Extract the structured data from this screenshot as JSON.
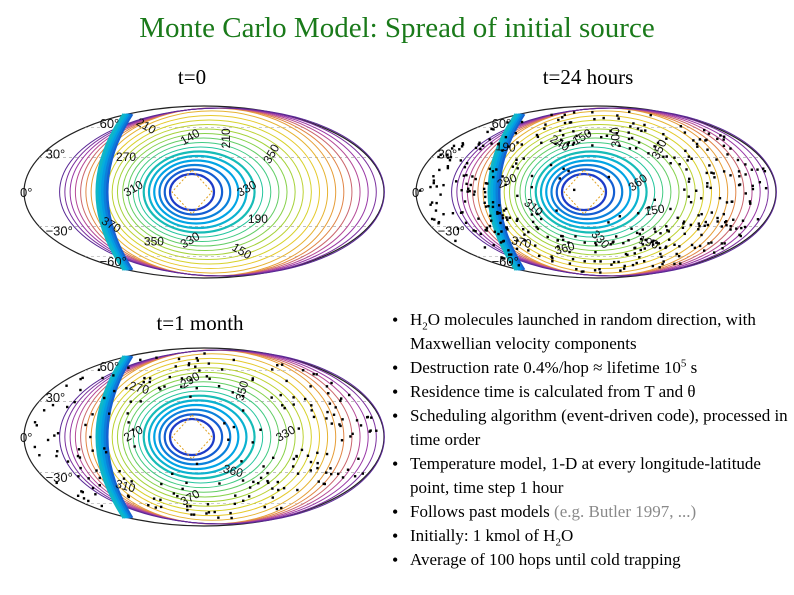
{
  "title": "Monte Carlo Model: Spread of initial source",
  "panels": [
    {
      "label": "t=0",
      "lat_labels": [
        "60°",
        "30°",
        "0°",
        "−30°",
        "−60°"
      ],
      "contour_labels": [
        "140",
        "210",
        "350",
        "330",
        "190",
        "150",
        "330",
        "350",
        "370",
        "310",
        "270",
        "210"
      ],
      "scatter_density": 0
    },
    {
      "label": "t=24 hours",
      "lat_labels": [
        "60°",
        "30°",
        "0°",
        "−30°",
        "−60°"
      ],
      "contour_labels": [
        "150",
        "300",
        "350",
        "360",
        "150",
        "190",
        "330",
        "360",
        "370",
        "310",
        "290",
        "190",
        "240"
      ],
      "scatter_density": 420
    },
    {
      "label": "t=1 month",
      "lat_labels": [
        "60°",
        "30°",
        "0°",
        "−30°"
      ],
      "contour_labels": [
        "290",
        "350",
        "330",
        "360",
        "370",
        "310",
        "270",
        "270"
      ],
      "scatter_density": 220
    }
  ],
  "bullets": {
    "b1_pre": "H",
    "b1_sub": "2",
    "b1_post": "O molecules launched in random direction, with Maxwellian velocity components",
    "b2_pre": "Destruction rate 0.4%/hop ≈ lifetime 10",
    "b2_sup": "5",
    "b2_post": " s",
    "b3": "Residence time is calculated from T and θ",
    "b4": "Scheduling algorithm (event-driven code), processed in time order",
    "b5": "Temperature model, 1-D at every longitude-latitude point, time step 1 hour",
    "b6_pre": "Follows past models ",
    "b6_gray": "(e.g. Butler 1997, ...)",
    "b7_pre": "Initially: 1 kmol of H",
    "b7_sub": "2",
    "b7_post": "O",
    "b8": "Average of 100 hops until cold trapping"
  }
}
